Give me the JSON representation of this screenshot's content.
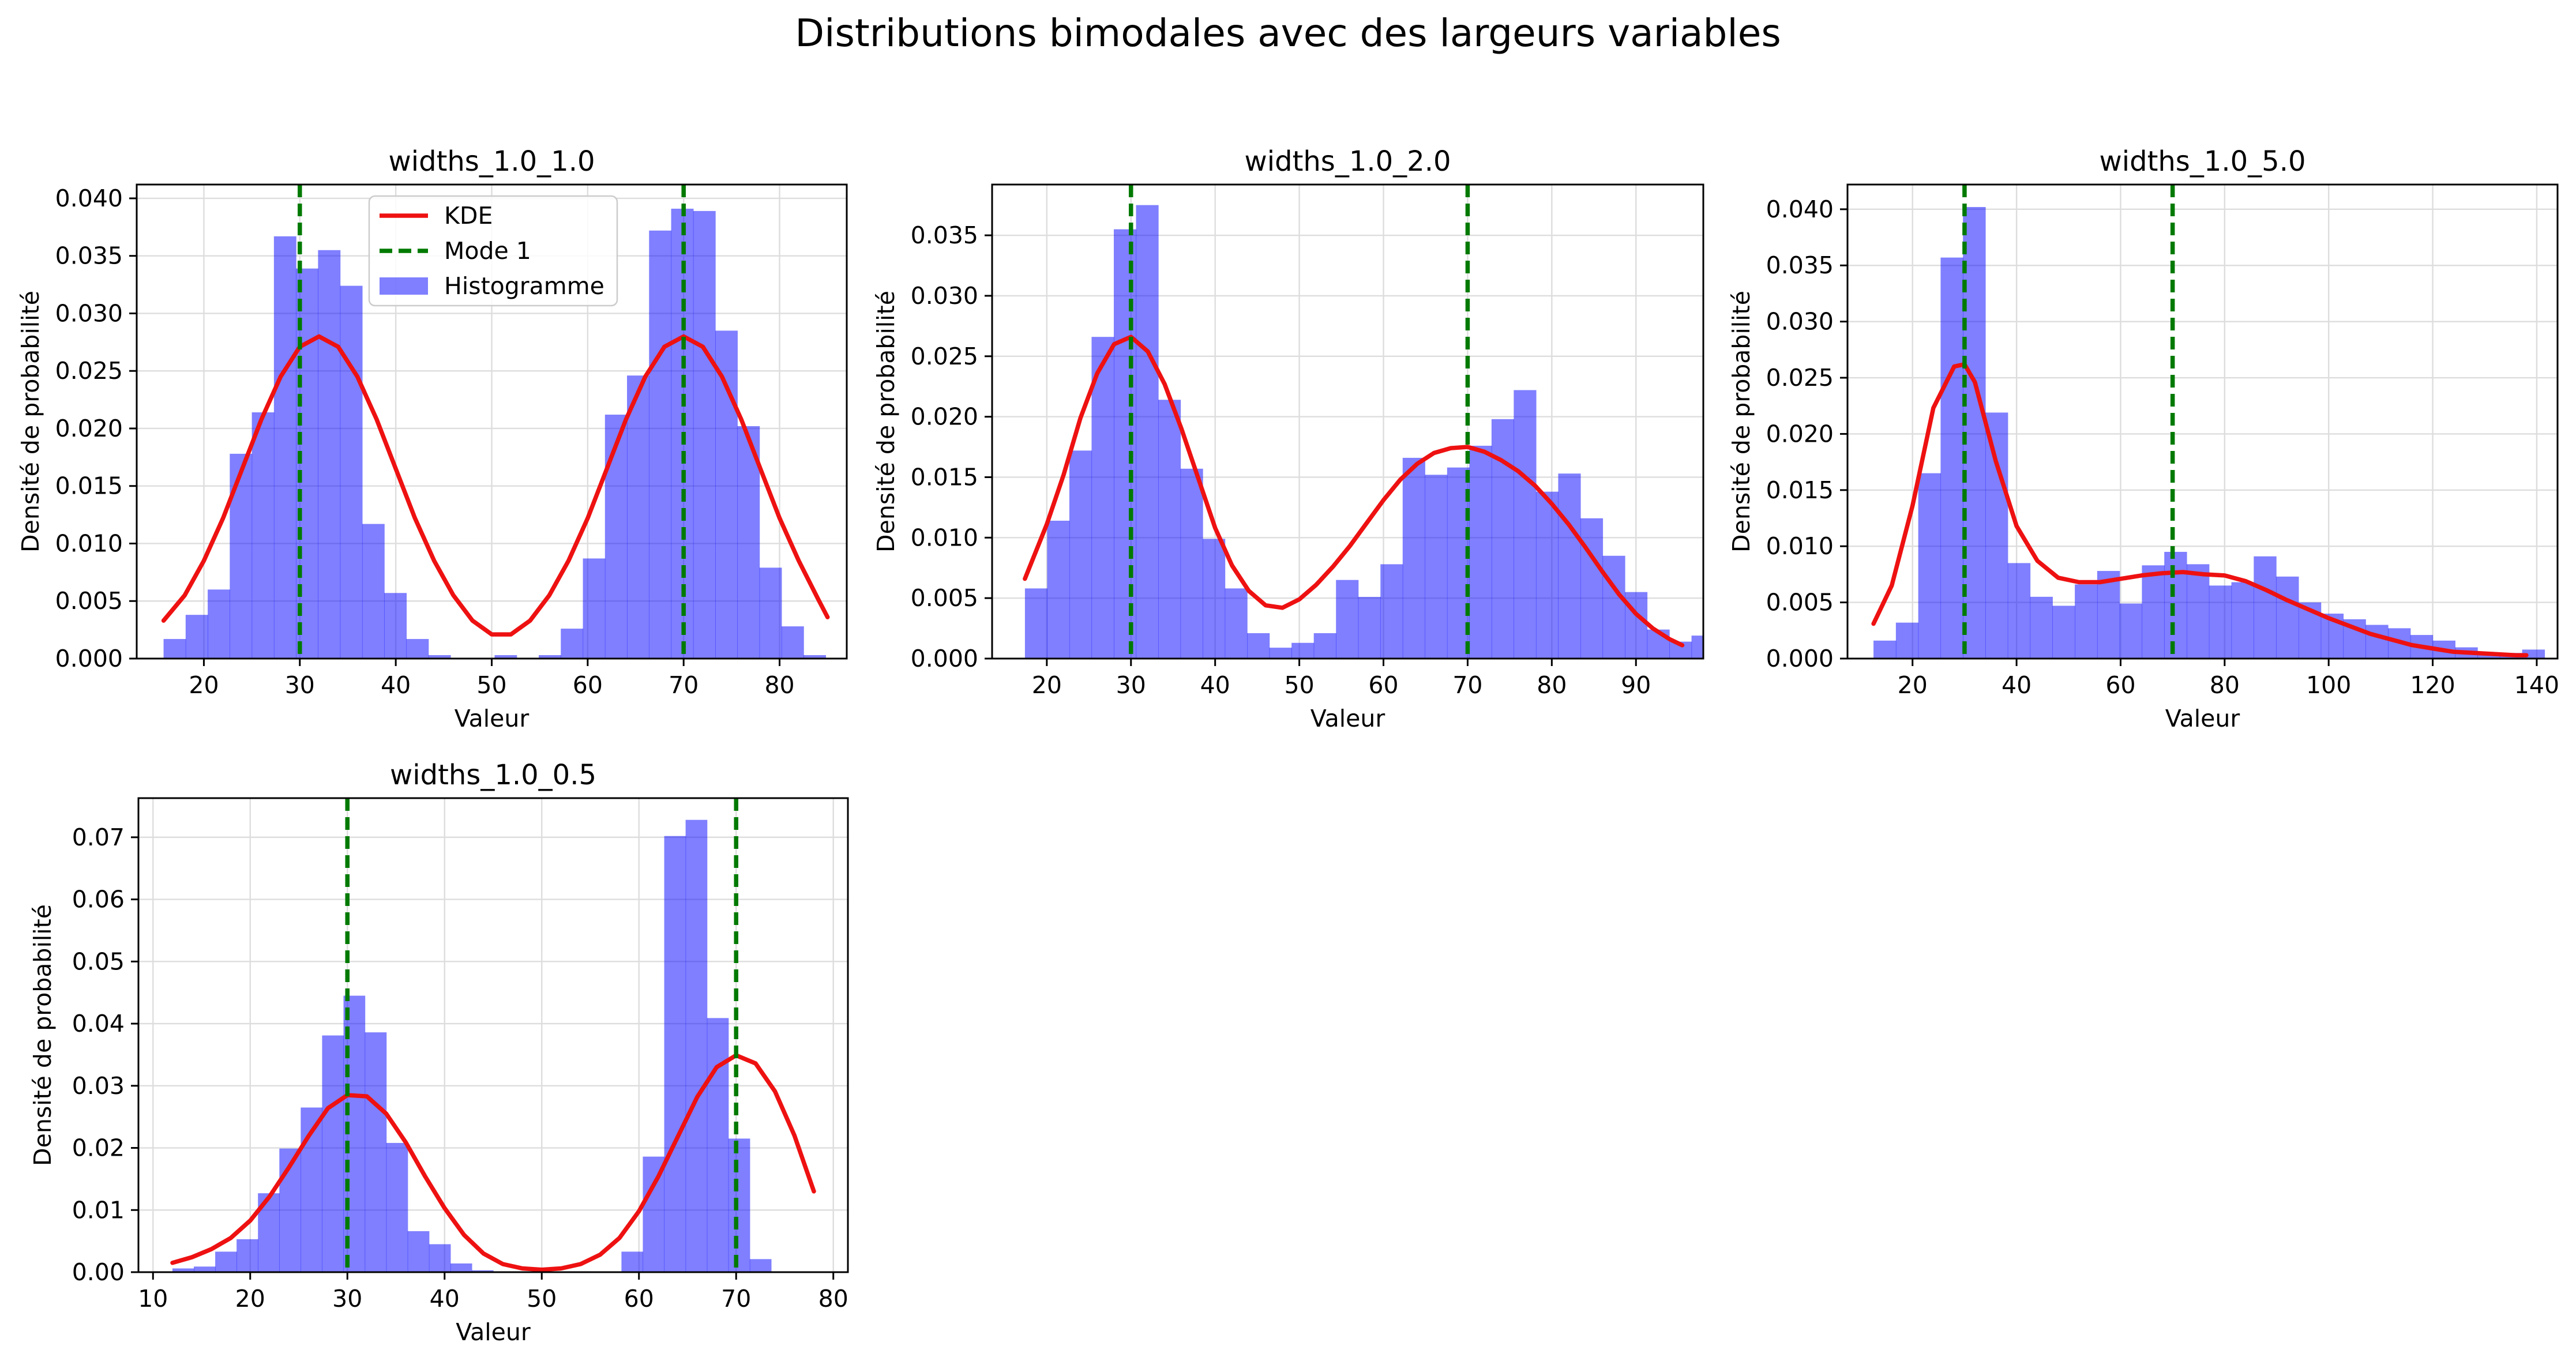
{
  "figure": {
    "title": "Distributions bimodales avec des largeurs variables"
  },
  "colors": {
    "histogram": "#0000ff",
    "kde": "#ee1111",
    "mode": "#007a00",
    "grid": "#dddddd",
    "axis": "#000000"
  },
  "legend": {
    "placement": "upper-center of first panel",
    "kde_label": "KDE",
    "mode_label": "Mode 1",
    "hist_label": "Histogramme"
  },
  "chart_data": [
    {
      "type": "histogram",
      "title": "widths_1.0_1.0",
      "xlabel": "Valeur",
      "ylabel": "Densité de probabilité",
      "xlim": [
        13,
        87
      ],
      "ylim": [
        0,
        0.0412
      ],
      "xticks": [
        20,
        30,
        40,
        50,
        60,
        70,
        80
      ],
      "yticks": [
        0.0,
        0.005,
        0.01,
        0.015,
        0.02,
        0.025,
        0.03,
        0.035,
        0.04
      ],
      "ytick_decimals": 3,
      "grid": true,
      "legend": true,
      "modes": [
        30,
        70
      ],
      "bins": {
        "start": 15.8,
        "width": 2.3,
        "heights": [
          0.0017,
          0.0038,
          0.006,
          0.0178,
          0.0214,
          0.0367,
          0.0339,
          0.0355,
          0.0324,
          0.0117,
          0.0057,
          0.0017,
          0.0003,
          0,
          0,
          0.0003,
          0,
          0.0003,
          0.0026,
          0.0087,
          0.0212,
          0.0246,
          0.0372,
          0.0391,
          0.0389,
          0.0285,
          0.0202,
          0.0079,
          0.0028,
          0.0003
        ]
      },
      "kde": {
        "x": [
          15.8,
          18,
          20,
          22,
          24,
          26,
          28,
          30,
          32,
          34,
          36,
          38,
          40,
          42,
          44,
          46,
          48,
          50,
          52,
          54,
          56,
          58,
          60,
          62,
          64,
          66,
          68,
          70,
          72,
          74,
          76,
          78,
          80,
          82,
          84,
          85
        ],
        "y": [
          0.0033,
          0.0055,
          0.0085,
          0.0122,
          0.0165,
          0.0208,
          0.0245,
          0.0271,
          0.028,
          0.0271,
          0.0245,
          0.0208,
          0.0165,
          0.0122,
          0.0085,
          0.0055,
          0.0033,
          0.0021,
          0.0021,
          0.0033,
          0.0055,
          0.0085,
          0.0122,
          0.0165,
          0.0208,
          0.0245,
          0.0271,
          0.028,
          0.0271,
          0.0245,
          0.0208,
          0.0165,
          0.0122,
          0.0085,
          0.0052,
          0.0036
        ]
      }
    },
    {
      "type": "histogram",
      "title": "widths_1.0_2.0",
      "xlabel": "Valeur",
      "ylabel": "Densité de probabilité",
      "xlim": [
        13.5,
        98
      ],
      "ylim": [
        0,
        0.0392
      ],
      "xticks": [
        20,
        30,
        40,
        50,
        60,
        70,
        80,
        90
      ],
      "yticks": [
        0.0,
        0.005,
        0.01,
        0.015,
        0.02,
        0.025,
        0.03,
        0.035
      ],
      "ytick_decimals": 3,
      "grid": true,
      "legend": false,
      "modes": [
        30,
        70
      ],
      "bins": {
        "start": 17.4,
        "width": 2.64,
        "heights": [
          0.0058,
          0.0114,
          0.0172,
          0.0266,
          0.0355,
          0.0375,
          0.0214,
          0.0157,
          0.0099,
          0.0058,
          0.0021,
          0.0009,
          0.0013,
          0.0021,
          0.0065,
          0.0051,
          0.0078,
          0.0166,
          0.0152,
          0.0158,
          0.0176,
          0.0198,
          0.0222,
          0.0138,
          0.0153,
          0.0116,
          0.0085,
          0.0055,
          0.0024,
          0.0014,
          0.0019
        ]
      },
      "kde": {
        "x": [
          17.4,
          20,
          22,
          24,
          26,
          28,
          30,
          32,
          34,
          36,
          38,
          40,
          42,
          44,
          46,
          48,
          50,
          52,
          54,
          56,
          58,
          60,
          62,
          64,
          66,
          68,
          70,
          72,
          74,
          76,
          78,
          80,
          82,
          84,
          86,
          88,
          90,
          92,
          94,
          95.5
        ],
        "y": [
          0.0066,
          0.0111,
          0.0152,
          0.0199,
          0.0236,
          0.026,
          0.0266,
          0.0254,
          0.0227,
          0.019,
          0.0149,
          0.0108,
          0.0077,
          0.0056,
          0.0044,
          0.0042,
          0.0049,
          0.0061,
          0.0076,
          0.0093,
          0.0112,
          0.0131,
          0.0148,
          0.0161,
          0.017,
          0.0174,
          0.0175,
          0.0171,
          0.0164,
          0.0155,
          0.0143,
          0.0128,
          0.0111,
          0.0092,
          0.0072,
          0.0053,
          0.0037,
          0.0025,
          0.0016,
          0.0011
        ]
      }
    },
    {
      "type": "histogram",
      "title": "widths_1.0_5.0",
      "xlabel": "Valeur",
      "ylabel": "Densité de probabilité",
      "xlim": [
        7.5,
        144
      ],
      "ylim": [
        0,
        0.0422
      ],
      "xticks": [
        20,
        40,
        60,
        80,
        100,
        120,
        140
      ],
      "yticks": [
        0.0,
        0.005,
        0.01,
        0.015,
        0.02,
        0.025,
        0.03,
        0.035,
        0.04
      ],
      "ytick_decimals": 3,
      "grid": true,
      "legend": false,
      "modes": [
        30,
        70
      ],
      "bins": {
        "start": 12.5,
        "width": 4.3,
        "heights": [
          0.0016,
          0.0032,
          0.0165,
          0.0357,
          0.0402,
          0.0219,
          0.0085,
          0.0055,
          0.0047,
          0.0066,
          0.0078,
          0.0049,
          0.0083,
          0.0095,
          0.0084,
          0.0065,
          0.0068,
          0.0091,
          0.0073,
          0.005,
          0.004,
          0.0035,
          0.003,
          0.0027,
          0.0021,
          0.0016,
          0.001,
          0.0005,
          0.0005,
          0.0008
        ]
      },
      "kde": {
        "x": [
          12.5,
          16,
          20,
          24,
          28,
          30,
          32,
          36,
          40,
          44,
          48,
          52,
          56,
          60,
          64,
          68,
          72,
          76,
          80,
          84,
          88,
          92,
          96,
          100,
          104,
          108,
          112,
          116,
          120,
          124,
          128,
          132,
          136,
          138
        ],
        "y": [
          0.0031,
          0.0065,
          0.0136,
          0.0223,
          0.026,
          0.0262,
          0.0246,
          0.0176,
          0.0118,
          0.0087,
          0.0072,
          0.0068,
          0.0068,
          0.0071,
          0.0074,
          0.0076,
          0.0077,
          0.0075,
          0.0074,
          0.0069,
          0.0061,
          0.0052,
          0.0044,
          0.0036,
          0.0029,
          0.0022,
          0.0017,
          0.0012,
          0.0009,
          0.0006,
          0.0005,
          0.0004,
          0.0003,
          0.0003
        ]
      }
    },
    {
      "type": "histogram",
      "title": "widths_1.0_0.5",
      "xlabel": "Valeur",
      "ylabel": "Densité de probabilité",
      "xlim": [
        8.5,
        81.5
      ],
      "ylim": [
        0,
        0.0763
      ],
      "xticks": [
        10,
        20,
        30,
        40,
        50,
        60,
        70,
        80
      ],
      "yticks": [
        0.0,
        0.01,
        0.02,
        0.03,
        0.04,
        0.05,
        0.06,
        0.07
      ],
      "ytick_decimals": 2,
      "grid": true,
      "legend": false,
      "modes": [
        30,
        70
      ],
      "bins": {
        "start": 12,
        "width": 2.2,
        "heights": [
          0.0006,
          0.0009,
          0.0033,
          0.0053,
          0.0127,
          0.0199,
          0.0265,
          0.0381,
          0.0445,
          0.0386,
          0.0208,
          0.0066,
          0.0045,
          0.0014,
          0.0003,
          0,
          0,
          0,
          0,
          0,
          0,
          0.0033,
          0.0186,
          0.0702,
          0.0728,
          0.0409,
          0.0215,
          0.0021
        ]
      },
      "kde": {
        "x": [
          12,
          14,
          16,
          18,
          20,
          22,
          24,
          26,
          28,
          30,
          32,
          34,
          36,
          38,
          40,
          42,
          44,
          46,
          48,
          50,
          52,
          54,
          56,
          58,
          60,
          62,
          64,
          66,
          68,
          70,
          72,
          74,
          76,
          78
        ],
        "y": [
          0.0015,
          0.0024,
          0.0037,
          0.0055,
          0.0083,
          0.0122,
          0.0169,
          0.0219,
          0.0264,
          0.0285,
          0.0283,
          0.0255,
          0.0209,
          0.0154,
          0.0103,
          0.006,
          0.003,
          0.0013,
          0.0006,
          0.0004,
          0.0006,
          0.0013,
          0.0028,
          0.0055,
          0.0098,
          0.0154,
          0.0218,
          0.0282,
          0.033,
          0.0349,
          0.0336,
          0.0291,
          0.022,
          0.013
        ]
      }
    }
  ]
}
